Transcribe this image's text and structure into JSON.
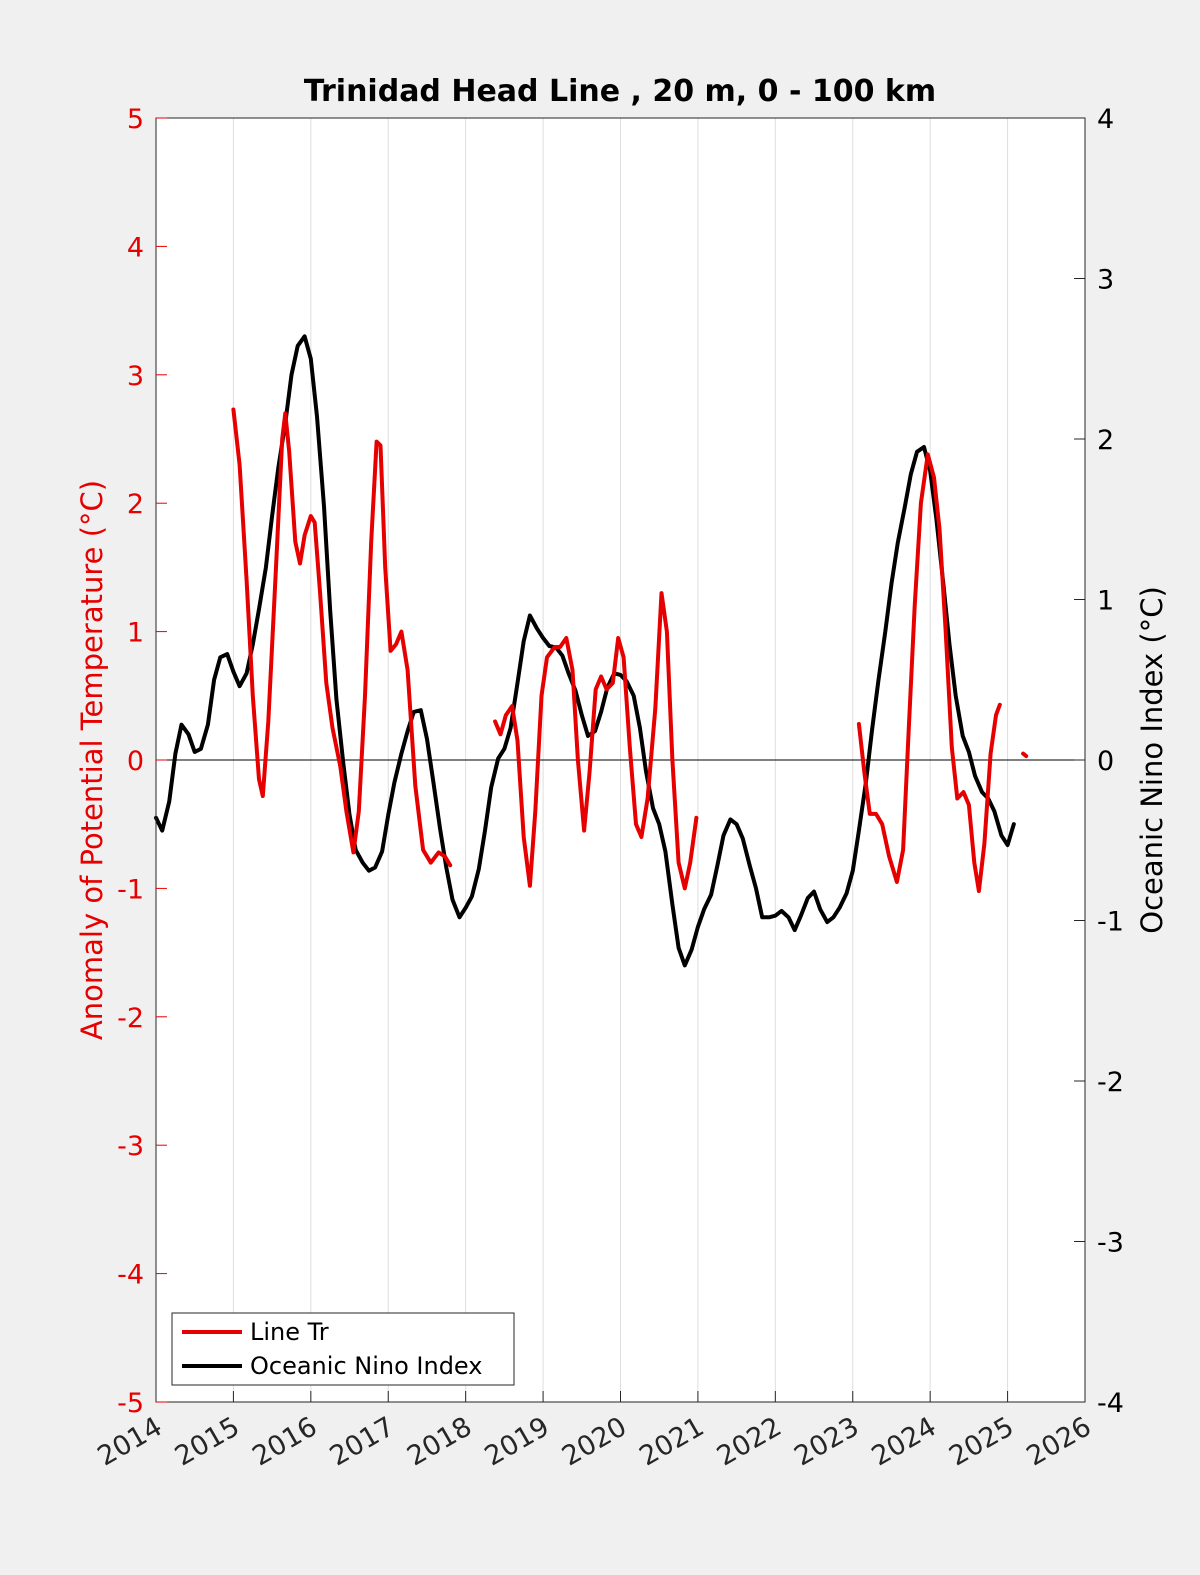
{
  "chart_data": {
    "type": "line",
    "title": "Trinidad Head Line , 20 m, 0 - 100 km",
    "xlabel": "",
    "ylabel_left": "Anomaly of Potential Temperature (°C)",
    "ylabel_right": "Oceanic Nino Index (°C)",
    "xlim": [
      2014,
      2026
    ],
    "x_ticks": [
      "2014",
      "2015",
      "2016",
      "2017",
      "2018",
      "2019",
      "2020",
      "2021",
      "2022",
      "2023",
      "2024",
      "2025",
      "2026"
    ],
    "ylim_left": [
      -5,
      5
    ],
    "y_ticks_left": [
      "-5",
      "-4",
      "-3",
      "-2",
      "-1",
      "0",
      "1",
      "2",
      "3",
      "4",
      "5"
    ],
    "ylim_right": [
      -4,
      4
    ],
    "y_ticks_right": [
      "-4",
      "-3",
      "-2",
      "-1",
      "0",
      "1",
      "2",
      "3",
      "4"
    ],
    "grid": "vertical",
    "legend_position": "bottom-left",
    "colors": {
      "line_tr": "#e60000",
      "oni": "#000000",
      "left_axis": "#e60000",
      "right_axis": "#000000"
    },
    "series": [
      {
        "name": "Line Tr",
        "axis": "left",
        "segments": [
          [
            [
              2015.0,
              2.73
            ],
            [
              2015.08,
              2.3
            ],
            [
              2015.17,
              1.4
            ],
            [
              2015.25,
              0.5
            ],
            [
              2015.33,
              -0.15
            ],
            [
              2015.38,
              -0.28
            ],
            [
              2015.45,
              0.3
            ],
            [
              2015.55,
              1.5
            ],
            [
              2015.63,
              2.5
            ],
            [
              2015.67,
              2.7
            ],
            [
              2015.72,
              2.4
            ],
            [
              2015.8,
              1.7
            ],
            [
              2015.86,
              1.53
            ],
            [
              2015.92,
              1.75
            ],
            [
              2016.0,
              1.9
            ],
            [
              2016.05,
              1.85
            ],
            [
              2016.12,
              1.3
            ],
            [
              2016.2,
              0.6
            ],
            [
              2016.28,
              0.25
            ],
            [
              2016.38,
              -0.05
            ],
            [
              2016.46,
              -0.4
            ],
            [
              2016.55,
              -0.72
            ],
            [
              2016.62,
              -0.4
            ],
            [
              2016.7,
              0.5
            ],
            [
              2016.78,
              1.7
            ],
            [
              2016.85,
              2.48
            ],
            [
              2016.9,
              2.45
            ],
            [
              2016.96,
              1.5
            ],
            [
              2017.03,
              0.85
            ],
            [
              2017.1,
              0.9
            ],
            [
              2017.17,
              1.0
            ],
            [
              2017.25,
              0.7
            ],
            [
              2017.35,
              -0.2
            ],
            [
              2017.45,
              -0.7
            ],
            [
              2017.55,
              -0.8
            ],
            [
              2017.65,
              -0.72
            ],
            [
              2017.73,
              -0.75
            ],
            [
              2017.8,
              -0.82
            ]
          ],
          [
            [
              2018.38,
              0.3
            ],
            [
              2018.45,
              0.2
            ],
            [
              2018.52,
              0.35
            ],
            [
              2018.6,
              0.42
            ],
            [
              2018.67,
              0.15
            ],
            [
              2018.75,
              -0.6
            ],
            [
              2018.83,
              -0.98
            ],
            [
              2018.9,
              -0.4
            ],
            [
              2018.98,
              0.5
            ],
            [
              2019.05,
              0.8
            ],
            [
              2019.15,
              0.88
            ],
            [
              2019.22,
              0.88
            ],
            [
              2019.3,
              0.95
            ],
            [
              2019.38,
              0.7
            ],
            [
              2019.45,
              0.0
            ],
            [
              2019.53,
              -0.55
            ],
            [
              2019.6,
              -0.1
            ],
            [
              2019.68,
              0.55
            ],
            [
              2019.75,
              0.65
            ],
            [
              2019.82,
              0.55
            ],
            [
              2019.9,
              0.6
            ],
            [
              2019.97,
              0.95
            ],
            [
              2020.04,
              0.8
            ],
            [
              2020.12,
              0.1
            ],
            [
              2020.2,
              -0.5
            ],
            [
              2020.27,
              -0.6
            ],
            [
              2020.35,
              -0.3
            ],
            [
              2020.45,
              0.4
            ],
            [
              2020.53,
              1.3
            ],
            [
              2020.6,
              1.0
            ],
            [
              2020.67,
              0.0
            ],
            [
              2020.75,
              -0.8
            ],
            [
              2020.83,
              -1.0
            ],
            [
              2020.9,
              -0.8
            ],
            [
              2020.98,
              -0.45
            ]
          ],
          [
            [
              2023.08,
              0.28
            ],
            [
              2023.15,
              -0.1
            ],
            [
              2023.22,
              -0.42
            ],
            [
              2023.3,
              -0.42
            ],
            [
              2023.38,
              -0.5
            ],
            [
              2023.47,
              -0.75
            ],
            [
              2023.57,
              -0.95
            ],
            [
              2023.65,
              -0.7
            ],
            [
              2023.72,
              0.2
            ],
            [
              2023.8,
              1.2
            ],
            [
              2023.88,
              2.0
            ],
            [
              2023.97,
              2.38
            ],
            [
              2024.05,
              2.2
            ],
            [
              2024.12,
              1.8
            ],
            [
              2024.2,
              1.0
            ],
            [
              2024.28,
              0.1
            ],
            [
              2024.35,
              -0.3
            ],
            [
              2024.43,
              -0.25
            ],
            [
              2024.5,
              -0.35
            ],
            [
              2024.57,
              -0.8
            ],
            [
              2024.63,
              -1.02
            ],
            [
              2024.7,
              -0.65
            ],
            [
              2024.78,
              0.05
            ],
            [
              2024.85,
              0.35
            ],
            [
              2024.9,
              0.43
            ]
          ],
          [
            [
              2025.2,
              0.05
            ],
            [
              2025.24,
              0.03
            ]
          ]
        ]
      },
      {
        "name": "Oceanic Nino Index",
        "axis": "right",
        "segments": [
          [
            [
              2014.0,
              -0.36
            ],
            [
              2014.08,
              -0.44
            ],
            [
              2014.17,
              -0.26
            ],
            [
              2014.25,
              0.04
            ],
            [
              2014.33,
              0.22
            ],
            [
              2014.42,
              0.16
            ],
            [
              2014.5,
              0.05
            ],
            [
              2014.58,
              0.07
            ],
            [
              2014.67,
              0.22
            ],
            [
              2014.75,
              0.5
            ],
            [
              2014.83,
              0.64
            ],
            [
              2014.92,
              0.66
            ],
            [
              2015.0,
              0.55
            ],
            [
              2015.08,
              0.46
            ],
            [
              2015.17,
              0.54
            ],
            [
              2015.25,
              0.72
            ],
            [
              2015.33,
              0.94
            ],
            [
              2015.42,
              1.2
            ],
            [
              2015.5,
              1.52
            ],
            [
              2015.58,
              1.82
            ],
            [
              2015.67,
              2.1
            ],
            [
              2015.75,
              2.4
            ],
            [
              2015.83,
              2.58
            ],
            [
              2015.92,
              2.64
            ],
            [
              2016.0,
              2.5
            ],
            [
              2016.08,
              2.14
            ],
            [
              2016.17,
              1.58
            ],
            [
              2016.25,
              0.93
            ],
            [
              2016.33,
              0.38
            ],
            [
              2016.42,
              -0.02
            ],
            [
              2016.5,
              -0.34
            ],
            [
              2016.58,
              -0.56
            ],
            [
              2016.67,
              -0.64
            ],
            [
              2016.75,
              -0.69
            ],
            [
              2016.83,
              -0.67
            ],
            [
              2016.92,
              -0.57
            ],
            [
              2017.0,
              -0.34
            ],
            [
              2017.08,
              -0.14
            ],
            [
              2017.17,
              0.04
            ],
            [
              2017.25,
              0.18
            ],
            [
              2017.33,
              0.3
            ],
            [
              2017.42,
              0.31
            ],
            [
              2017.5,
              0.13
            ],
            [
              2017.58,
              -0.13
            ],
            [
              2017.67,
              -0.43
            ],
            [
              2017.75,
              -0.67
            ],
            [
              2017.83,
              -0.87
            ],
            [
              2017.92,
              -0.98
            ],
            [
              2018.0,
              -0.92
            ],
            [
              2018.08,
              -0.85
            ],
            [
              2018.17,
              -0.68
            ],
            [
              2018.25,
              -0.44
            ],
            [
              2018.33,
              -0.17
            ],
            [
              2018.42,
              0.01
            ],
            [
              2018.5,
              0.07
            ],
            [
              2018.58,
              0.2
            ],
            [
              2018.67,
              0.48
            ],
            [
              2018.75,
              0.74
            ],
            [
              2018.83,
              0.9
            ],
            [
              2018.92,
              0.82
            ],
            [
              2019.0,
              0.76
            ],
            [
              2019.08,
              0.71
            ],
            [
              2019.17,
              0.7
            ],
            [
              2019.25,
              0.65
            ],
            [
              2019.33,
              0.54
            ],
            [
              2019.42,
              0.43
            ],
            [
              2019.5,
              0.28
            ],
            [
              2019.58,
              0.15
            ],
            [
              2019.67,
              0.18
            ],
            [
              2019.75,
              0.3
            ],
            [
              2019.83,
              0.45
            ],
            [
              2019.92,
              0.54
            ],
            [
              2020.0,
              0.53
            ],
            [
              2020.08,
              0.49
            ],
            [
              2020.17,
              0.4
            ],
            [
              2020.25,
              0.2
            ],
            [
              2020.33,
              -0.07
            ],
            [
              2020.42,
              -0.3
            ],
            [
              2020.5,
              -0.4
            ],
            [
              2020.58,
              -0.57
            ],
            [
              2020.67,
              -0.9
            ],
            [
              2020.75,
              -1.17
            ],
            [
              2020.83,
              -1.28
            ],
            [
              2020.92,
              -1.18
            ],
            [
              2021.0,
              -1.04
            ],
            [
              2021.08,
              -0.93
            ],
            [
              2021.17,
              -0.84
            ],
            [
              2021.25,
              -0.66
            ],
            [
              2021.33,
              -0.47
            ],
            [
              2021.42,
              -0.37
            ],
            [
              2021.5,
              -0.4
            ],
            [
              2021.58,
              -0.49
            ],
            [
              2021.67,
              -0.66
            ],
            [
              2021.75,
              -0.8
            ],
            [
              2021.83,
              -0.98
            ],
            [
              2021.92,
              -0.98
            ],
            [
              2022.0,
              -0.97
            ],
            [
              2022.08,
              -0.94
            ],
            [
              2022.17,
              -0.98
            ],
            [
              2022.25,
              -1.06
            ],
            [
              2022.33,
              -0.97
            ],
            [
              2022.42,
              -0.86
            ],
            [
              2022.5,
              -0.82
            ],
            [
              2022.58,
              -0.93
            ],
            [
              2022.67,
              -1.01
            ],
            [
              2022.75,
              -0.98
            ],
            [
              2022.83,
              -0.92
            ],
            [
              2022.92,
              -0.83
            ],
            [
              2023.0,
              -0.69
            ],
            [
              2023.08,
              -0.44
            ],
            [
              2023.17,
              -0.14
            ],
            [
              2023.25,
              0.19
            ],
            [
              2023.33,
              0.49
            ],
            [
              2023.42,
              0.8
            ],
            [
              2023.5,
              1.1
            ],
            [
              2023.58,
              1.35
            ],
            [
              2023.67,
              1.57
            ],
            [
              2023.75,
              1.78
            ],
            [
              2023.83,
              1.92
            ],
            [
              2023.92,
              1.95
            ],
            [
              2024.0,
              1.8
            ],
            [
              2024.08,
              1.5
            ],
            [
              2024.17,
              1.1
            ],
            [
              2024.25,
              0.72
            ],
            [
              2024.33,
              0.4
            ],
            [
              2024.42,
              0.15
            ],
            [
              2024.5,
              0.05
            ],
            [
              2024.58,
              -0.1
            ],
            [
              2024.67,
              -0.2
            ],
            [
              2024.75,
              -0.24
            ],
            [
              2024.83,
              -0.32
            ],
            [
              2024.92,
              -0.47
            ],
            [
              2025.0,
              -0.53
            ],
            [
              2025.08,
              -0.4
            ]
          ]
        ]
      }
    ]
  }
}
